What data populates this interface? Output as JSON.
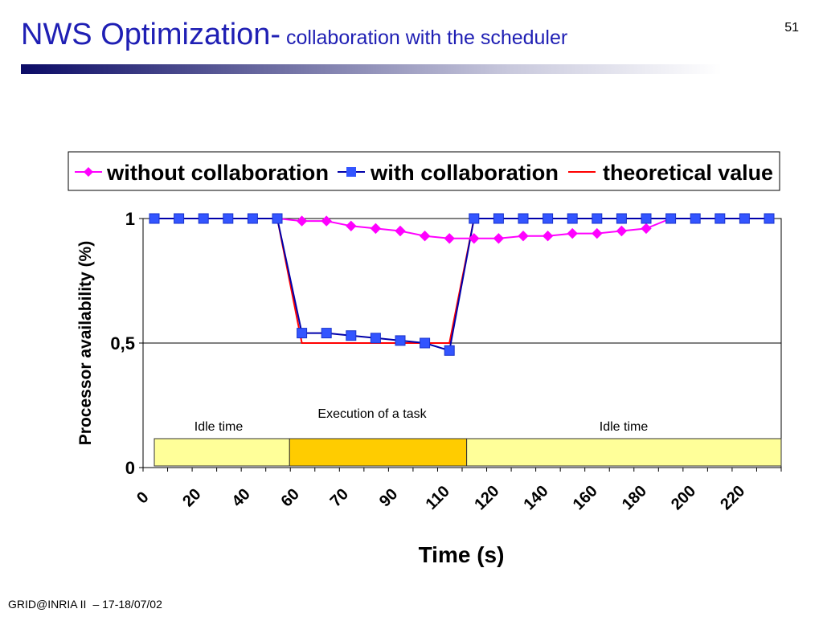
{
  "slide": {
    "title_main": "NWS Optimization-",
    "title_sub": " collaboration with the scheduler",
    "number": "51",
    "footer_left": "GRID@INRIA II",
    "footer_right": "– 17-18/07/02"
  },
  "colors": {
    "title": "#1f1fb4",
    "without": "#ff00ff",
    "with": "#3355ff",
    "with_line": "#0000aa",
    "theoretical": "#ff0000",
    "idle_fill": "#ffff99",
    "exec_fill": "#ffcc00"
  },
  "chart_data": {
    "type": "line",
    "xlabel": "Time (s)",
    "ylabel": "Processor availability (%)",
    "ylim": [
      0,
      1
    ],
    "yticks": [
      {
        "value": 0,
        "label": "0"
      },
      {
        "value": 0.5,
        "label": "0,5"
      },
      {
        "value": 1,
        "label": "1"
      }
    ],
    "xtick_labels": [
      "0",
      "20",
      "40",
      "60",
      "70",
      "90",
      "110",
      "120",
      "140",
      "160",
      "180",
      "200",
      "220"
    ],
    "grid": "horizontal",
    "legend_position": "top",
    "series": [
      {
        "name": "without collaboration",
        "marker": "diamond",
        "values": [
          1,
          1,
          1,
          1,
          1,
          1,
          0.99,
          0.99,
          0.97,
          0.96,
          0.95,
          0.93,
          0.92,
          0.92,
          0.92,
          0.93,
          0.93,
          0.94,
          0.94,
          0.95,
          0.96,
          1,
          1,
          1,
          1,
          1
        ]
      },
      {
        "name": "with collaboration",
        "marker": "square",
        "values": [
          1,
          1,
          1,
          1,
          1,
          1,
          0.54,
          0.54,
          0.53,
          0.52,
          0.51,
          0.5,
          0.47,
          1,
          1,
          1,
          1,
          1,
          1,
          1,
          1,
          1,
          1,
          1,
          1,
          1
        ]
      },
      {
        "name": "theoretical value",
        "marker": "none",
        "values": [
          1,
          1,
          1,
          1,
          1,
          1,
          0.5,
          0.5,
          0.5,
          0.5,
          0.5,
          0.5,
          0.5,
          1,
          1,
          1,
          1,
          1,
          1,
          1,
          1,
          1,
          1,
          1,
          1,
          1
        ]
      }
    ],
    "annotations": [
      {
        "label": "Idle time",
        "kind": "idle",
        "from_point": 0,
        "to_point": 5.5
      },
      {
        "label": "Execution of a task",
        "kind": "exec",
        "from_point": 5.5,
        "to_point": 12.7
      },
      {
        "label": "Idle time",
        "kind": "idle",
        "from_point": 12.7,
        "to_point": 25.5
      }
    ]
  }
}
